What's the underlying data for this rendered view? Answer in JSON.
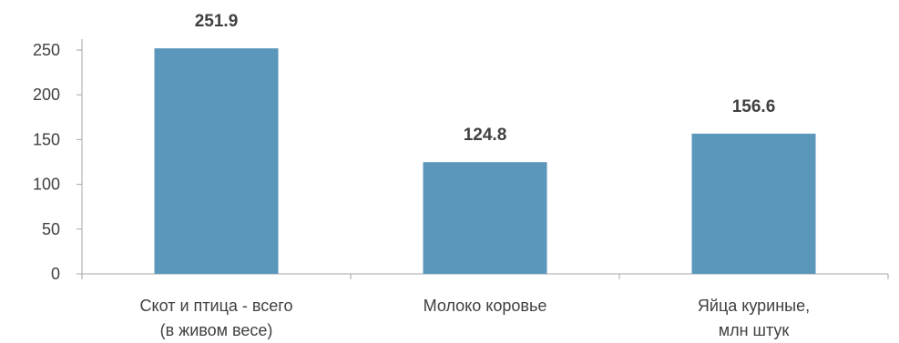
{
  "chart_data": {
    "type": "bar",
    "title": "",
    "xlabel": "",
    "ylabel": "",
    "categories": [
      [
        "Скот и птица - всего",
        "(в живом весе)"
      ],
      [
        "Молоко коровье"
      ],
      [
        "Яйца куриные,",
        "млн штук"
      ]
    ],
    "values": [
      251.9,
      124.8,
      156.6
    ],
    "value_labels": [
      "251.9",
      "124.8",
      "156.6"
    ],
    "ylim": [
      0,
      250
    ],
    "yticks": [
      0,
      50,
      100,
      150,
      200,
      250
    ],
    "ytick_labels": [
      "0",
      "50",
      "100",
      "150",
      "200",
      "250"
    ],
    "grid": false,
    "legend": "none",
    "bar_color": "#5b96bb"
  }
}
